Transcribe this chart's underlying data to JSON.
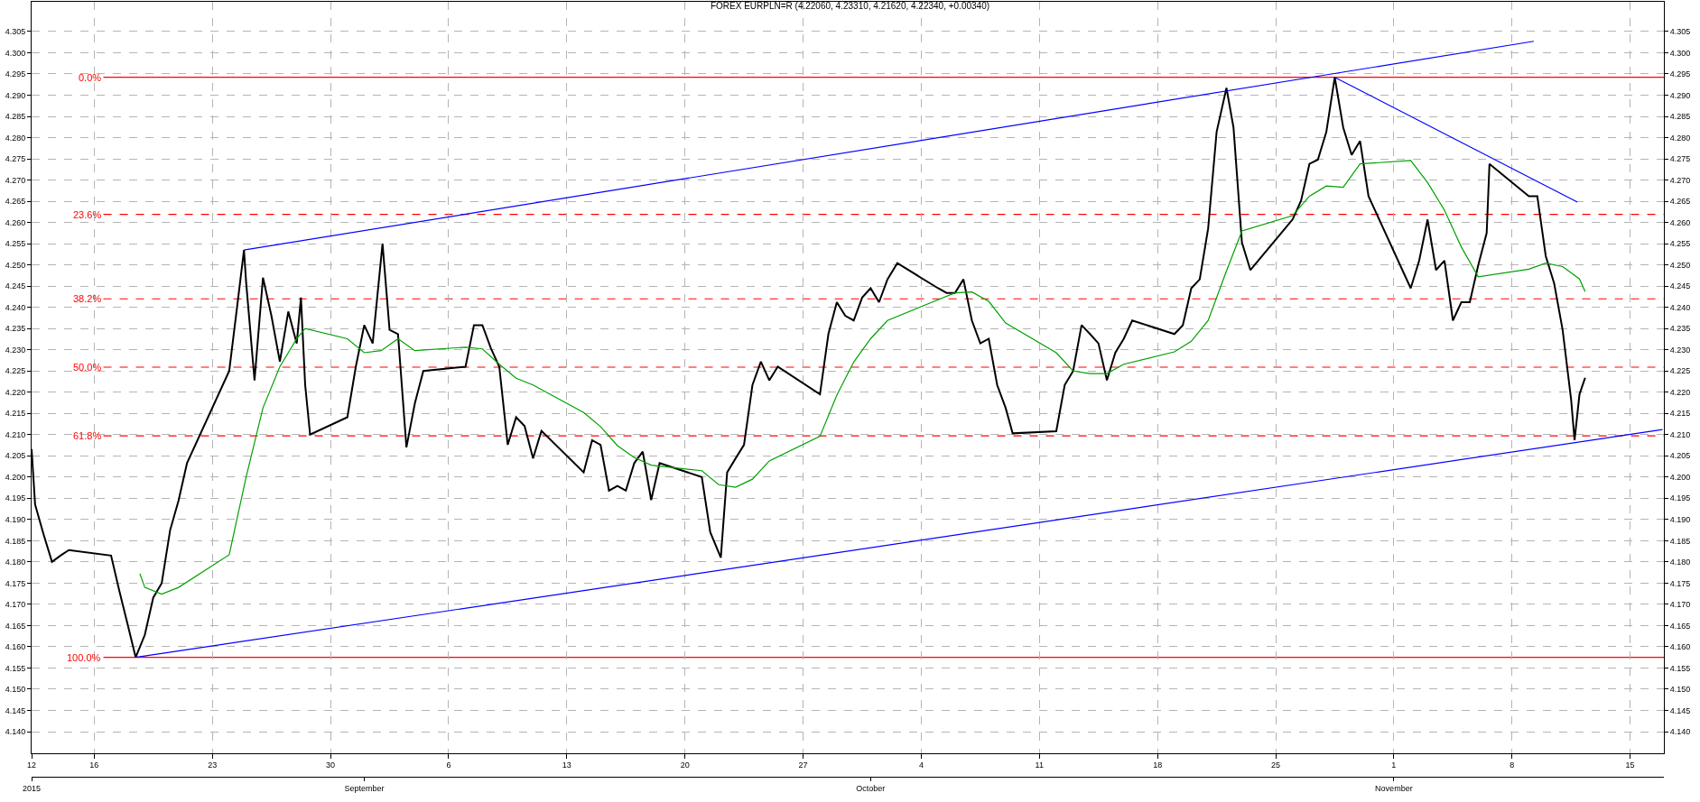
{
  "chart_data": {
    "type": "line",
    "title": "FOREX EURPLN=R (4.22060, 4.23310, 4.21620, 4.22340, +0.00340)",
    "series": [
      {
        "color": "#000000",
        "x": [
          "2015-08-12T07:00",
          "2015-08-12T12:00",
          "2015-08-13T00:00",
          "2015-08-13T12:00",
          "2015-08-14T00:00",
          "2015-08-14T12:00",
          "2015-08-17T00:00",
          "2015-08-17T12:00",
          "2015-08-18T00:00",
          "2015-08-18T11:00",
          "2015-08-19T00:00",
          "2015-08-19T12:00",
          "2015-08-20T00:00",
          "2015-08-20T12:00",
          "2015-08-21T00:00",
          "2015-08-21T12:00",
          "2015-08-24T00:00",
          "2015-08-24T12:00",
          "2015-08-24T21:00",
          "2015-08-25T00:00",
          "2015-08-25T12:00",
          "2015-08-26T00:00",
          "2015-08-26T12:00",
          "2015-08-27T00:00",
          "2015-08-27T12:00",
          "2015-08-28T00:00",
          "2015-08-28T06:00",
          "2015-08-28T12:00",
          "2015-08-28T19:00",
          "2015-08-31T00:00",
          "2015-08-31T12:00",
          "2015-09-01T00:00",
          "2015-09-01T12:00",
          "2015-09-02T02:00",
          "2015-09-02T12:00",
          "2015-09-03T00:00",
          "2015-09-03T12:00",
          "2015-09-04T00:00",
          "2015-09-04T12:00",
          "2015-09-07T00:00",
          "2015-09-07T12:00",
          "2015-09-08T00:00",
          "2015-09-08T12:00",
          "2015-09-09T00:00",
          "2015-09-09T12:00",
          "2015-09-10T00:00",
          "2015-09-10T12:00",
          "2015-09-11T00:00",
          "2015-09-11T12:00",
          "2015-09-14T00:00",
          "2015-09-14T12:00",
          "2015-09-15T00:00",
          "2015-09-15T12:00",
          "2015-09-16T00:00",
          "2015-09-16T12:00",
          "2015-09-17T00:00",
          "2015-09-17T12:00",
          "2015-09-18T00:00",
          "2015-09-18T12:00",
          "2015-09-21T00:00",
          "2015-09-21T12:00",
          "2015-09-22T03:00",
          "2015-09-22T12:00",
          "2015-09-23T00:00",
          "2015-09-23T12:00",
          "2015-09-24T00:00",
          "2015-09-24T12:00",
          "2015-09-25T00:00",
          "2015-09-25T12:00",
          "2015-09-28T00:00",
          "2015-09-28T12:00",
          "2015-09-29T00:00",
          "2015-09-29T12:00",
          "2015-09-30T00:00",
          "2015-09-30T12:00",
          "2015-10-01T00:00",
          "2015-10-01T12:00",
          "2015-10-02T00:00",
          "2015-10-02T14:00",
          "2015-10-05T00:00",
          "2015-10-05T12:00",
          "2015-10-06T00:00",
          "2015-10-06T12:00",
          "2015-10-07T00:00",
          "2015-10-07T12:00",
          "2015-10-08T00:00",
          "2015-10-08T12:00",
          "2015-10-09T00:00",
          "2015-10-09T10:00",
          "2015-10-12T00:00",
          "2015-10-12T12:00",
          "2015-10-13T00:00",
          "2015-10-13T12:00",
          "2015-10-14T00:00",
          "2015-10-14T12:00",
          "2015-10-15T00:00",
          "2015-10-15T12:00",
          "2015-10-16T00:00",
          "2015-10-16T12:00",
          "2015-10-19T00:00",
          "2015-10-19T12:00",
          "2015-10-20T00:00",
          "2015-10-20T12:00",
          "2015-10-21T00:00",
          "2015-10-21T12:00",
          "2015-10-22T02:00",
          "2015-10-22T12:00",
          "2015-10-23T00:00",
          "2015-10-23T12:00",
          "2015-10-26T00:00",
          "2015-10-26T12:00",
          "2015-10-27T00:00",
          "2015-10-27T12:00",
          "2015-10-28T00:00",
          "2015-10-28T12:00",
          "2015-10-29T00:00",
          "2015-10-29T12:00",
          "2015-10-30T00:00",
          "2015-10-30T12:00",
          "2015-11-02T00:00",
          "2015-11-02T12:00",
          "2015-11-03T00:00",
          "2015-11-03T12:00",
          "2015-11-04T00:00",
          "2015-11-04T12:00",
          "2015-11-05T00:00",
          "2015-11-05T12:00",
          "2015-11-06T00:00",
          "2015-11-06T12:00",
          "2015-11-06T16:00",
          "2015-11-09T00:00",
          "2015-11-09T12:00",
          "2015-11-10T00:00",
          "2015-11-10T12:00",
          "2015-11-11T00:00",
          "2015-11-11T12:00",
          "2015-11-11T17:00",
          "2015-11-12T00:00",
          "2015-11-12T08:00"
        ],
        "values": [
          4.2066,
          4.1935,
          4.1865,
          4.18,
          4.1815,
          4.1828,
          4.1815,
          4.173,
          4.165,
          4.1575,
          4.1628,
          4.1716,
          4.175,
          4.1875,
          4.1945,
          4.2033,
          4.225,
          4.2412,
          4.2535,
          4.246,
          4.2228,
          4.247,
          4.238,
          4.2272,
          4.239,
          4.2315,
          4.2423,
          4.2217,
          4.21,
          4.2141,
          4.226,
          4.2358,
          4.2315,
          4.255,
          4.2347,
          4.2337,
          4.207,
          4.2174,
          4.225,
          4.226,
          4.2358,
          4.2358,
          4.2304,
          4.226,
          4.2076,
          4.2141,
          4.212,
          4.2044,
          4.2109,
          4.2011,
          4.2087,
          4.2076,
          4.1968,
          4.1979,
          4.1968,
          4.2033,
          4.206,
          4.1946,
          4.2033,
          4.2,
          4.187,
          4.181,
          4.2011,
          4.2044,
          4.2076,
          4.2217,
          4.2272,
          4.2228,
          4.226,
          4.2195,
          4.2337,
          4.2412,
          4.238,
          4.2369,
          4.2423,
          4.2445,
          4.2412,
          4.2466,
          4.2504,
          4.2445,
          4.2434,
          4.2434,
          4.2466,
          4.2369,
          4.2315,
          4.2326,
          4.2217,
          4.2163,
          4.2103,
          4.2108,
          4.2217,
          4.225,
          4.2358,
          4.2337,
          4.2315,
          4.2228,
          4.2293,
          4.2326,
          4.2369,
          4.2337,
          4.2358,
          4.2445,
          4.2466,
          4.2586,
          4.2813,
          4.2917,
          4.2824,
          4.2553,
          4.2488,
          4.2607,
          4.2651,
          4.2738,
          4.2748,
          4.2813,
          4.2942,
          4.2824,
          4.2759,
          4.2792,
          4.2662,
          4.2445,
          4.251,
          4.2607,
          4.2488,
          4.251,
          4.2369,
          4.2412,
          4.2412,
          4.2499,
          4.2575,
          4.2738,
          4.2662,
          4.2662,
          4.2521,
          4.2456,
          4.2347,
          4.2184,
          4.2087,
          4.2195,
          4.2234
        ]
      },
      {
        "color": "#00a000",
        "x": [
          "2015-08-18T17:00",
          "2015-08-19T00:00",
          "2015-08-20T00:00",
          "2015-08-21T00:00",
          "2015-08-24T00:00",
          "2015-08-25T00:00",
          "2015-08-26T00:00",
          "2015-08-27T00:00",
          "2015-08-28T00:00",
          "2015-08-28T12:00",
          "2015-08-31T00:00",
          "2015-09-01T00:00",
          "2015-09-02T00:00",
          "2015-09-03T00:00",
          "2015-09-04T00:00",
          "2015-09-07T00:00",
          "2015-09-08T00:00",
          "2015-09-09T00:00",
          "2015-09-10T00:00",
          "2015-09-11T00:00",
          "2015-09-14T00:00",
          "2015-09-15T00:00",
          "2015-09-16T00:00",
          "2015-09-17T00:00",
          "2015-09-18T00:00",
          "2015-09-21T00:00",
          "2015-09-22T00:00",
          "2015-09-23T00:00",
          "2015-09-24T00:00",
          "2015-09-25T00:00",
          "2015-09-28T00:00",
          "2015-09-29T00:00",
          "2015-09-30T00:00",
          "2015-10-01T00:00",
          "2015-10-02T00:00",
          "2015-10-05T00:00",
          "2015-10-06T00:00",
          "2015-10-07T00:00",
          "2015-10-08T00:00",
          "2015-10-09T00:00",
          "2015-10-12T00:00",
          "2015-10-13T00:00",
          "2015-10-14T00:00",
          "2015-10-15T00:00",
          "2015-10-16T00:00",
          "2015-10-19T00:00",
          "2015-10-20T00:00",
          "2015-10-21T00:00",
          "2015-10-22T00:00",
          "2015-10-23T00:00",
          "2015-10-26T00:00",
          "2015-10-27T00:00",
          "2015-10-28T00:00",
          "2015-10-29T00:00",
          "2015-10-30T00:00",
          "2015-11-02T00:00",
          "2015-11-03T00:00",
          "2015-11-04T00:00",
          "2015-11-05T00:00",
          "2015-11-06T00:00",
          "2015-11-09T00:00",
          "2015-11-10T00:00",
          "2015-11-11T00:00",
          "2015-11-12T00:00",
          "2015-11-12T08:00"
        ],
        "values": [
          4.1772,
          4.174,
          4.1724,
          4.174,
          4.1817,
          4.2,
          4.2163,
          4.226,
          4.2326,
          4.235,
          4.2326,
          4.2293,
          4.2298,
          4.2326,
          4.2298,
          4.2306,
          4.2302,
          4.2266,
          4.2233,
          4.2217,
          4.2152,
          4.2119,
          4.2074,
          4.2046,
          4.2028,
          4.2015,
          4.1982,
          4.1976,
          4.1995,
          4.2038,
          4.2096,
          4.2193,
          4.2271,
          4.2326,
          4.2369,
          4.2418,
          4.2434,
          4.2436,
          4.2414,
          4.2363,
          4.2293,
          4.225,
          4.2244,
          4.2244,
          4.2266,
          4.2295,
          4.232,
          4.2369,
          4.2477,
          4.258,
          4.2616,
          4.2662,
          4.2686,
          4.2683,
          4.2738,
          4.2746,
          4.2694,
          4.2629,
          4.2542,
          4.2472,
          4.249,
          4.2504,
          4.2496,
          4.2467,
          4.2437
        ]
      },
      {
        "color": "#0000ff",
        "x": [
          "2015-08-24T21:00",
          "2015-11-09T07:00"
        ],
        "values": [
          4.2535,
          4.3027
        ]
      },
      {
        "color": "#0000ff",
        "x": [
          "2015-08-18T11:00",
          "2015-11-16T22:00"
        ],
        "values": [
          4.1575,
          4.2112
        ]
      },
      {
        "color": "#0000ff",
        "x": [
          "2015-10-28T12:00",
          "2015-11-11T21:00"
        ],
        "values": [
          4.2942,
          4.2648
        ]
      }
    ],
    "ref_lines": [
      {
        "axis": "y",
        "value": 4.2942,
        "color": "#ff0000",
        "line_style": "solid"
      },
      {
        "axis": "y",
        "value": 4.2619,
        "color": "#ff0000",
        "line_style": "dashed"
      },
      {
        "axis": "y",
        "value": 4.242,
        "color": "#ff0000",
        "line_style": "dashed"
      },
      {
        "axis": "y",
        "value": 4.2259,
        "color": "#ff0000",
        "line_style": "dashed"
      },
      {
        "axis": "y",
        "value": 4.2097,
        "color": "#ff0000",
        "line_style": "dashed"
      },
      {
        "axis": "y",
        "value": 4.1575,
        "color": "#ff0000",
        "line_style": "solid"
      }
    ],
    "annotations": [
      {
        "text": "0.0%",
        "x": "2015-08-16T12:00",
        "y": 4.2942
      },
      {
        "text": "23.6%",
        "x": "2015-08-16T12:00",
        "y": 4.2619
      },
      {
        "text": "38.2%",
        "x": "2015-08-16T12:00",
        "y": 4.242
      },
      {
        "text": "50.0%",
        "x": "2015-08-16T12:00",
        "y": 4.2259
      },
      {
        "text": "61.8%",
        "x": "2015-08-16T12:00",
        "y": 4.2097
      },
      {
        "text": "100.0%",
        "x": "2015-08-16T12:00",
        "y": 4.1575
      }
    ],
    "xlim": [
      "2015-08-12T07:00",
      "2015-11-17T00:00"
    ],
    "xticks": [
      {
        "value": "2015-08-12T07:00",
        "label": "12"
      },
      {
        "value": "2015-08-16",
        "label": "16"
      },
      {
        "value": "2015-08-23",
        "label": "23"
      },
      {
        "value": "2015-08-30",
        "label": "30"
      },
      {
        "value": "2015-09-06",
        "label": "6"
      },
      {
        "value": "2015-09-13",
        "label": "13"
      },
      {
        "value": "2015-09-20",
        "label": "20"
      },
      {
        "value": "2015-09-27",
        "label": "27"
      },
      {
        "value": "2015-10-04",
        "label": "4"
      },
      {
        "value": "2015-10-11",
        "label": "11"
      },
      {
        "value": "2015-10-18",
        "label": "18"
      },
      {
        "value": "2015-10-25",
        "label": "25"
      },
      {
        "value": "2015-11-01",
        "label": "1"
      },
      {
        "value": "2015-11-08",
        "label": "8"
      },
      {
        "value": "2015-11-15",
        "label": "15"
      }
    ],
    "x2lim": [
      "2015-08-12T07:00",
      "2015-11-17T00:00"
    ],
    "x2ticks": [
      {
        "value": "2015-08-12T07:00",
        "label": "2015"
      },
      {
        "value": "2015-09-01",
        "label": "September"
      },
      {
        "value": "2015-10-01",
        "label": "October"
      },
      {
        "value": "2015-11-01",
        "label": "November"
      }
    ],
    "ylim": [
      4.135,
      4.312
    ],
    "yticks": [
      {
        "value": 4.14,
        "label": "4.140"
      },
      {
        "value": 4.145,
        "label": "4.145"
      },
      {
        "value": 4.15,
        "label": "4.150"
      },
      {
        "value": 4.155,
        "label": "4.155"
      },
      {
        "value": 4.16,
        "label": "4.160"
      },
      {
        "value": 4.165,
        "label": "4.165"
      },
      {
        "value": 4.17,
        "label": "4.170"
      },
      {
        "value": 4.175,
        "label": "4.175"
      },
      {
        "value": 4.18,
        "label": "4.180"
      },
      {
        "value": 4.185,
        "label": "4.185"
      },
      {
        "value": 4.19,
        "label": "4.190"
      },
      {
        "value": 4.195,
        "label": "4.195"
      },
      {
        "value": 4.2,
        "label": "4.200"
      },
      {
        "value": 4.205,
        "label": "4.205"
      },
      {
        "value": 4.21,
        "label": "4.210"
      },
      {
        "value": 4.215,
        "label": "4.215"
      },
      {
        "value": 4.22,
        "label": "4.220"
      },
      {
        "value": 4.225,
        "label": "4.225"
      },
      {
        "value": 4.23,
        "label": "4.230"
      },
      {
        "value": 4.235,
        "label": "4.235"
      },
      {
        "value": 4.24,
        "label": "4.240"
      },
      {
        "value": 4.245,
        "label": "4.245"
      },
      {
        "value": 4.25,
        "label": "4.250"
      },
      {
        "value": 4.255,
        "label": "4.255"
      },
      {
        "value": 4.26,
        "label": "4.260"
      },
      {
        "value": 4.265,
        "label": "4.265"
      },
      {
        "value": 4.27,
        "label": "4.270"
      },
      {
        "value": 4.275,
        "label": "4.275"
      },
      {
        "value": 4.28,
        "label": "4.280"
      },
      {
        "value": 4.285,
        "label": "4.285"
      },
      {
        "value": 4.29,
        "label": "4.290"
      },
      {
        "value": 4.295,
        "label": "4.295"
      },
      {
        "value": 4.3,
        "label": "4.300"
      },
      {
        "value": 4.305,
        "label": "4.305"
      }
    ],
    "y2lim": [
      4.135,
      4.312
    ],
    "y2ticks": [
      {
        "value": 4.14,
        "label": "4.140"
      },
      {
        "value": 4.145,
        "label": "4.145"
      },
      {
        "value": 4.15,
        "label": "4.150"
      },
      {
        "value": 4.155,
        "label": "4.155"
      },
      {
        "value": 4.16,
        "label": "4.160"
      },
      {
        "value": 4.165,
        "label": "4.165"
      },
      {
        "value": 4.17,
        "label": "4.170"
      },
      {
        "value": 4.175,
        "label": "4.175"
      },
      {
        "value": 4.18,
        "label": "4.180"
      },
      {
        "value": 4.185,
        "label": "4.185"
      },
      {
        "value": 4.19,
        "label": "4.190"
      },
      {
        "value": 4.195,
        "label": "4.195"
      },
      {
        "value": 4.2,
        "label": "4.200"
      },
      {
        "value": 4.205,
        "label": "4.205"
      },
      {
        "value": 4.21,
        "label": "4.210"
      },
      {
        "value": 4.215,
        "label": "4.215"
      },
      {
        "value": 4.22,
        "label": "4.220"
      },
      {
        "value": 4.225,
        "label": "4.225"
      },
      {
        "value": 4.23,
        "label": "4.230"
      },
      {
        "value": 4.235,
        "label": "4.235"
      },
      {
        "value": 4.24,
        "label": "4.240"
      },
      {
        "value": 4.245,
        "label": "4.245"
      },
      {
        "value": 4.25,
        "label": "4.250"
      },
      {
        "value": 4.255,
        "label": "4.255"
      },
      {
        "value": 4.26,
        "label": "4.260"
      },
      {
        "value": 4.265,
        "label": "4.265"
      },
      {
        "value": 4.27,
        "label": "4.270"
      },
      {
        "value": 4.275,
        "label": "4.275"
      },
      {
        "value": 4.28,
        "label": "4.280"
      },
      {
        "value": 4.285,
        "label": "4.285"
      },
      {
        "value": 4.29,
        "label": "4.290"
      },
      {
        "value": 4.295,
        "label": "4.295"
      },
      {
        "value": 4.3,
        "label": "4.300"
      },
      {
        "value": 4.305,
        "label": "4.305"
      }
    ],
    "grid": true,
    "marker": "none",
    "line_style": "solid"
  }
}
